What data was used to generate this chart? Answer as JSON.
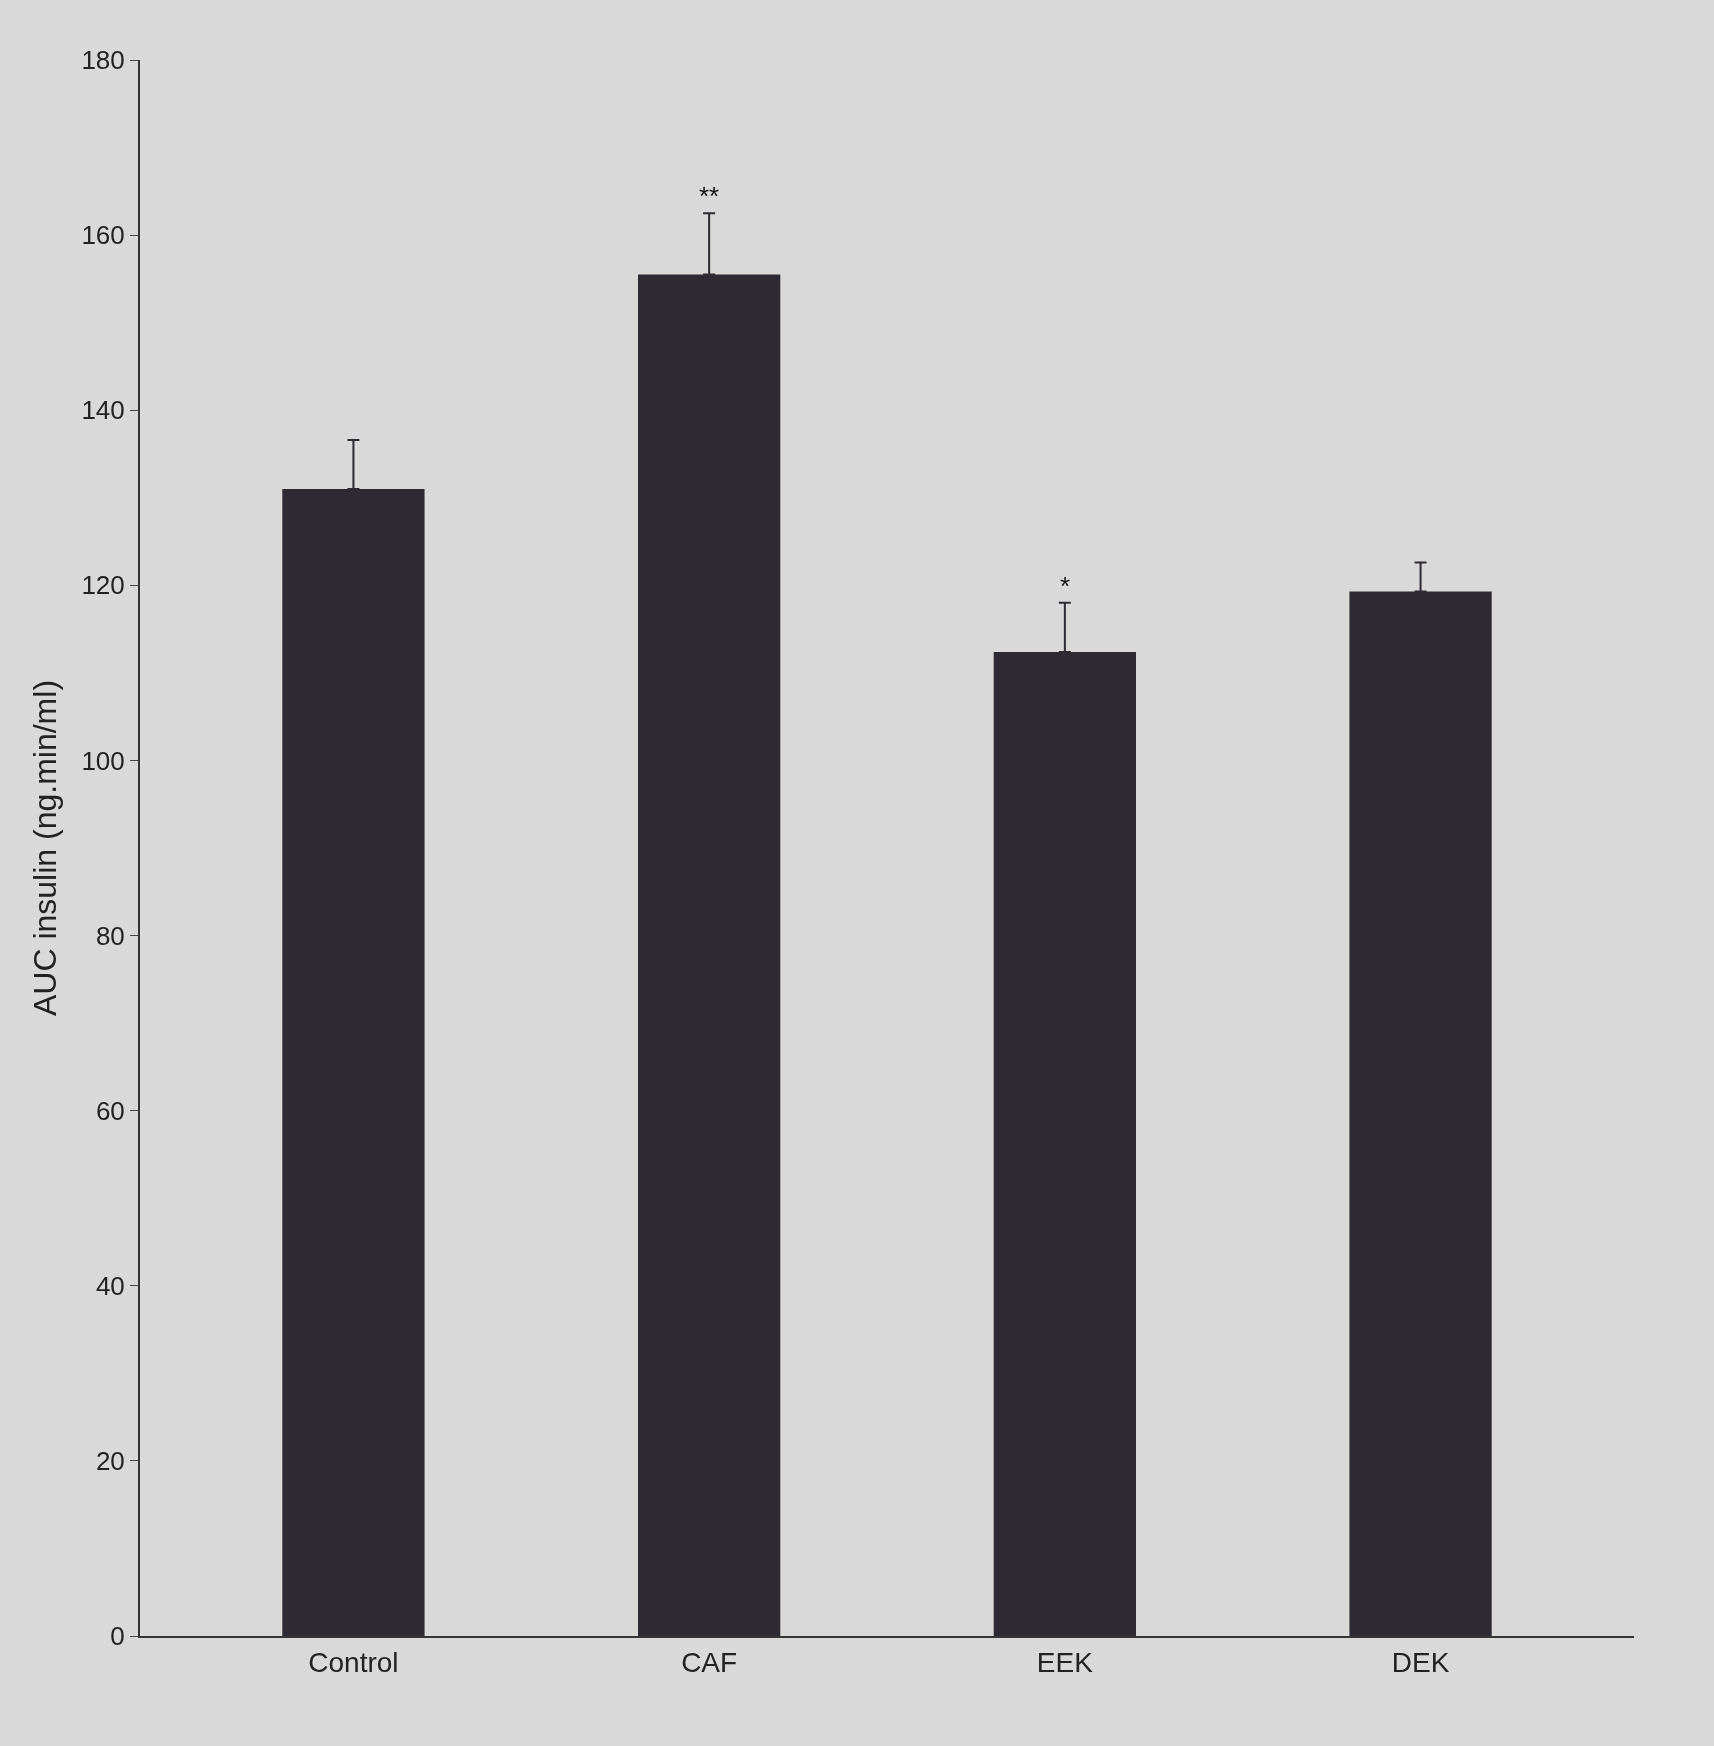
{
  "chart_data": {
    "type": "bar",
    "ylabel": "AUC insulin (ng.min/ml)",
    "categories": [
      "Control",
      "CAF",
      "EEK",
      "DEK"
    ],
    "values": [
      131,
      155.5,
      112.4,
      119.3
    ],
    "errors": [
      [
        131,
        136.6
      ],
      [
        155.5,
        162.5
      ],
      [
        112.4,
        118
      ],
      [
        119.3,
        122.6
      ]
    ],
    "color": "#2e2a33",
    "ylim": [
      0,
      180
    ],
    "yticks": [
      0,
      20,
      40,
      60,
      80,
      100,
      120,
      140,
      160,
      180
    ],
    "annotations": [
      {
        "text": "**",
        "x": "CAF",
        "y": 162.5
      },
      {
        "text": "*",
        "x": "EEK",
        "y": 118
      }
    ],
    "grid": false
  }
}
